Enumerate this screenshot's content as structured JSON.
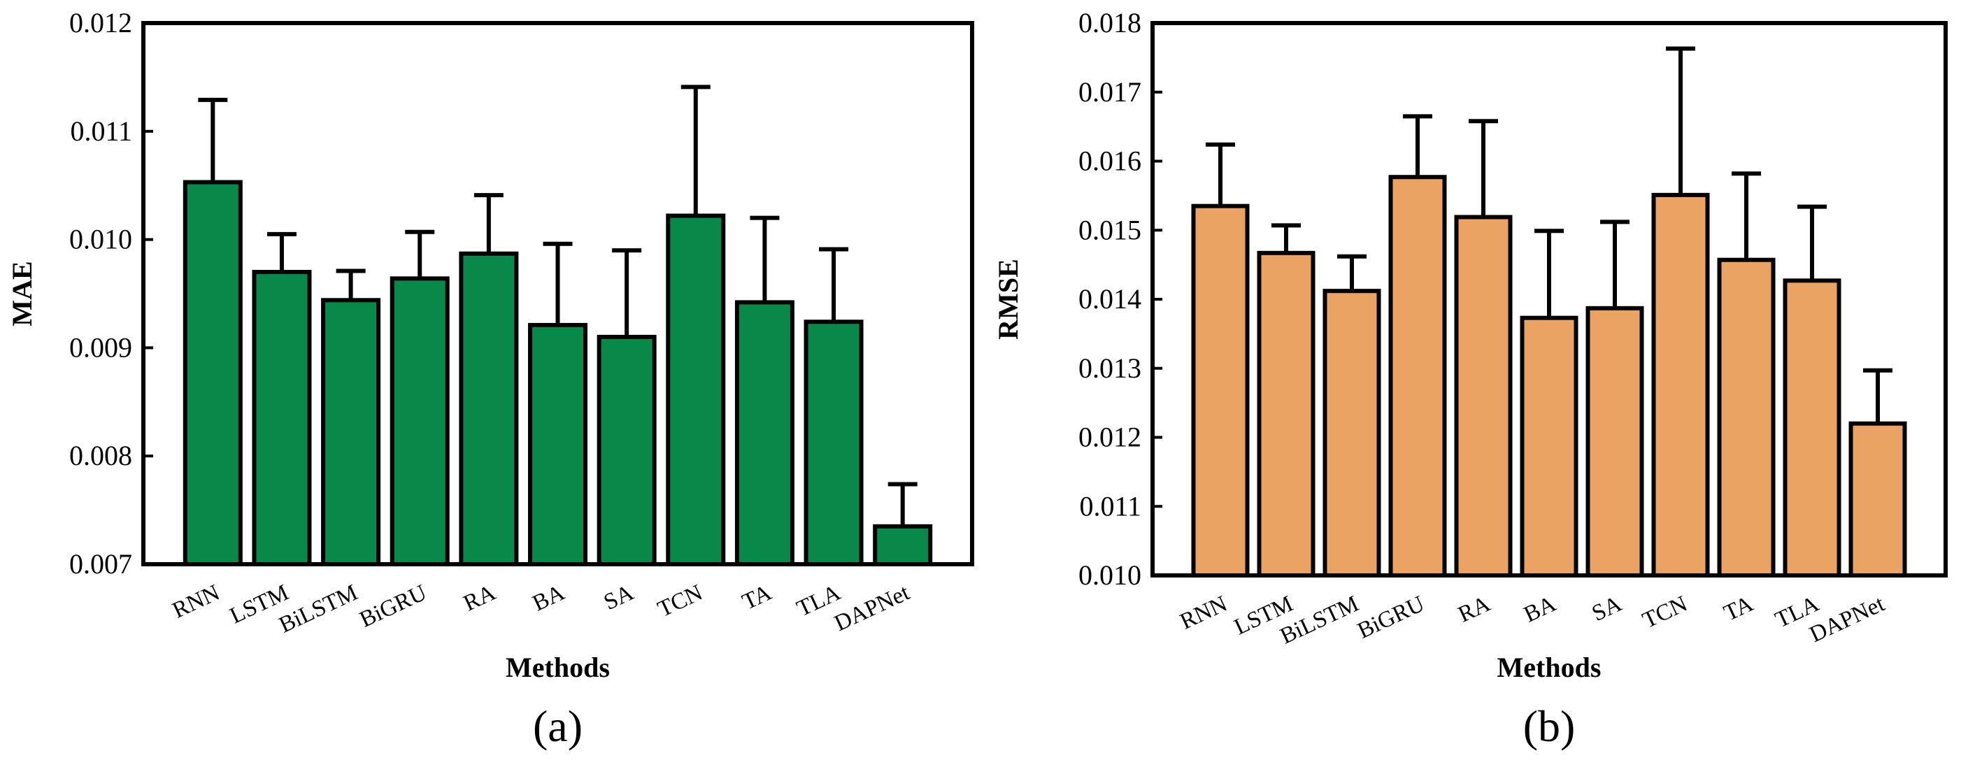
{
  "chart_data": [
    {
      "type": "bar",
      "panel_label": "(a)",
      "title": "",
      "xlabel": "Methods",
      "ylabel": "MAE",
      "ylim": [
        0.007,
        0.012
      ],
      "yticks": [
        "0.007",
        "0.008",
        "0.009",
        "0.010",
        "0.011",
        "0.012"
      ],
      "categories": [
        "RNN",
        "LSTM",
        "BiLSTM",
        "BiGRU",
        "RA",
        "BA",
        "SA",
        "TCN",
        "TA",
        "TLA",
        "DAPNet"
      ],
      "values": [
        0.01053,
        0.0097,
        0.00944,
        0.00964,
        0.00987,
        0.00921,
        0.0091,
        0.01022,
        0.00942,
        0.00924,
        0.00735
      ],
      "error_upper": [
        0.00076,
        0.00035,
        0.00027,
        0.00043,
        0.00054,
        0.00075,
        0.0008,
        0.00119,
        0.00078,
        0.00067,
        0.00039
      ],
      "bar_color": "#08894a",
      "grid": false
    },
    {
      "type": "bar",
      "panel_label": "(b)",
      "title": "",
      "xlabel": "Methods",
      "ylabel": "RMSE",
      "ylim": [
        0.01,
        0.018
      ],
      "yticks": [
        "0.010",
        "0.011",
        "0.012",
        "0.013",
        "0.014",
        "0.015",
        "0.016",
        "0.017",
        "0.018"
      ],
      "categories": [
        "RNN",
        "LSTM",
        "BiLSTM",
        "BiGRU",
        "RA",
        "BA",
        "SA",
        "TCN",
        "TA",
        "TLA",
        "DAPNet"
      ],
      "values": [
        0.01535,
        0.01467,
        0.01412,
        0.01577,
        0.01519,
        0.01373,
        0.01387,
        0.01551,
        0.01457,
        0.01427,
        0.0122
      ],
      "error_upper": [
        0.00089,
        0.0004,
        0.0005,
        0.00088,
        0.00139,
        0.00126,
        0.00125,
        0.00212,
        0.00125,
        0.00107,
        0.00077
      ],
      "bar_color": "#eba363",
      "grid": false
    }
  ]
}
